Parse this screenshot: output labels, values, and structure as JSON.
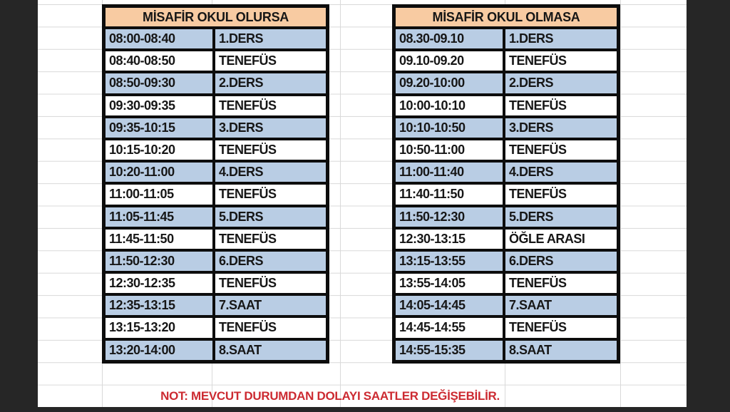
{
  "colors": {
    "page_bg": "#262626",
    "sheet_bg": "#ffffff",
    "grid": "#d9d9d9",
    "line": "#0d0d0d",
    "header_bg": "#f8cba2",
    "lesson_bg": "#b9cde4",
    "break_bg": "#ffffff",
    "text": "#161616",
    "note_red": "#cc2a31"
  },
  "tables": [
    {
      "title": "MİSAFİR OKUL OLURSA",
      "rows": [
        {
          "time": "08:00-08:40",
          "label": "1.DERS",
          "type": "lesson"
        },
        {
          "time": "08:40-08:50",
          "label": "TENEFÜS",
          "type": "break"
        },
        {
          "time": "08:50-09:30",
          "label": "2.DERS",
          "type": "lesson"
        },
        {
          "time": "09:30-09:35",
          "label": "TENEFÜS",
          "type": "break"
        },
        {
          "time": "09:35-10:15",
          "label": "3.DERS",
          "type": "lesson"
        },
        {
          "time": "10:15-10:20",
          "label": "TENEFÜS",
          "type": "break"
        },
        {
          "time": "10:20-11:00",
          "label": "4.DERS",
          "type": "lesson"
        },
        {
          "time": "11:00-11:05",
          "label": "TENEFÜS",
          "type": "break"
        },
        {
          "time": "11:05-11:45",
          "label": "5.DERS",
          "type": "lesson"
        },
        {
          "time": "11:45-11:50",
          "label": "TENEFÜS",
          "type": "break"
        },
        {
          "time": "11:50-12:30",
          "label": "6.DERS",
          "type": "lesson"
        },
        {
          "time": "12:30-12:35",
          "label": "TENEFÜS",
          "type": "break"
        },
        {
          "time": "12:35-13:15",
          "label": "7.SAAT",
          "type": "lesson"
        },
        {
          "time": "13:15-13:20",
          "label": "TENEFÜS",
          "type": "break"
        },
        {
          "time": "13:20-14:00",
          "label": "8.SAAT",
          "type": "lesson"
        }
      ]
    },
    {
      "title": "MİSAFİR OKUL OLMASA",
      "rows": [
        {
          "time": "08.30-09.10",
          "label": "1.DERS",
          "type": "lesson"
        },
        {
          "time": "09.10-09.20",
          "label": "TENEFÜS",
          "type": "break"
        },
        {
          "time": "09.20-10:00",
          "label": "2.DERS",
          "type": "lesson"
        },
        {
          "time": "10:00-10:10",
          "label": "TENEFÜS",
          "type": "break"
        },
        {
          "time": "10:10-10:50",
          "label": "3.DERS",
          "type": "lesson"
        },
        {
          "time": "10:50-11:00",
          "label": "TENEFÜS",
          "type": "break"
        },
        {
          "time": "11:00-11:40",
          "label": "4.DERS",
          "type": "lesson"
        },
        {
          "time": "11:40-11:50",
          "label": "TENEFÜS",
          "type": "break"
        },
        {
          "time": "11:50-12:30",
          "label": "5.DERS",
          "type": "lesson"
        },
        {
          "time": "12:30-13:15",
          "label": "ÖĞLE ARASI",
          "type": "break"
        },
        {
          "time": "13:15-13:55",
          "label": "6.DERS",
          "type": "lesson"
        },
        {
          "time": "13:55-14:05",
          "label": "TENEFÜS",
          "type": "break"
        },
        {
          "time": "14:05-14:45",
          "label": "7.SAAT",
          "type": "lesson"
        },
        {
          "time": "14:45-14:55",
          "label": "TENEFÜS",
          "type": "break"
        },
        {
          "time": "14:55-15:35",
          "label": "8.SAAT",
          "type": "lesson"
        }
      ]
    }
  ],
  "note": "NOT: MEVCUT DURUMDAN DOLAYI SAATLER DEĞİŞEBİLİR."
}
